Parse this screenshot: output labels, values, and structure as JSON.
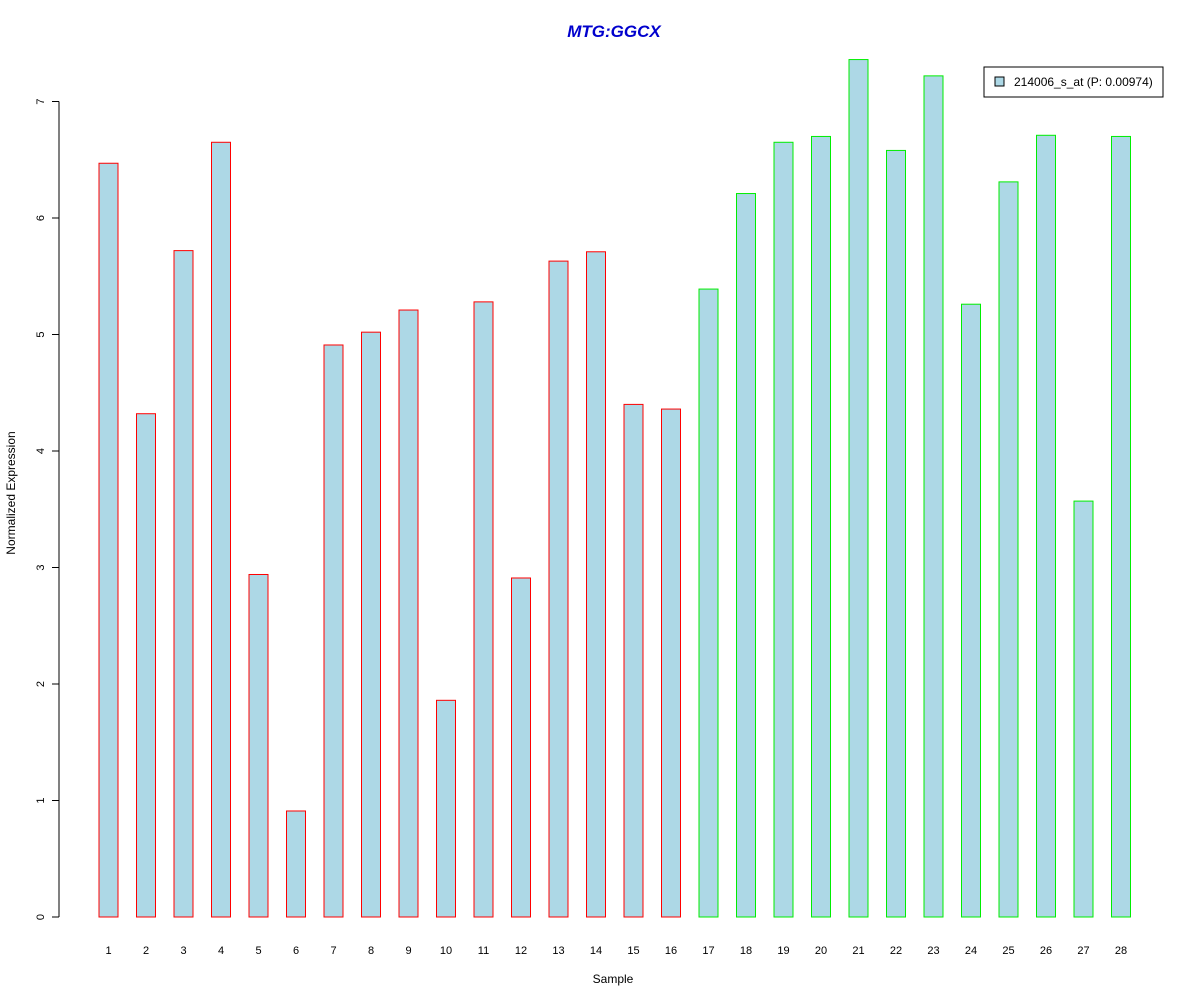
{
  "chart_data": {
    "type": "bar",
    "title": "MTG:GGCX",
    "xlabel": "Sample",
    "ylabel": "Normalized Expression",
    "categories": [
      "1",
      "2",
      "3",
      "4",
      "5",
      "6",
      "7",
      "8",
      "9",
      "10",
      "11",
      "12",
      "13",
      "14",
      "15",
      "16",
      "17",
      "18",
      "19",
      "20",
      "21",
      "22",
      "23",
      "24",
      "25",
      "26",
      "27",
      "28"
    ],
    "series": [
      {
        "name": "214006_s_at (P: 0.00974)",
        "values": [
          6.47,
          4.32,
          5.72,
          6.65,
          2.94,
          0.91,
          4.91,
          5.02,
          5.21,
          1.86,
          5.28,
          2.91,
          5.63,
          5.71,
          4.4,
          4.36,
          5.39,
          6.21,
          6.65,
          6.7,
          7.36,
          6.58,
          7.22,
          5.26,
          6.31,
          6.71,
          3.57,
          6.7
        ]
      }
    ],
    "group_border_colors": [
      "#ff0000",
      "#ff0000",
      "#ff0000",
      "#ff0000",
      "#ff0000",
      "#ff0000",
      "#ff0000",
      "#ff0000",
      "#ff0000",
      "#ff0000",
      "#ff0000",
      "#ff0000",
      "#ff0000",
      "#ff0000",
      "#ff0000",
      "#ff0000",
      "#00ee00",
      "#00ee00",
      "#00ee00",
      "#00ee00",
      "#00ee00",
      "#00ee00",
      "#00ee00",
      "#00ee00",
      "#00ee00",
      "#00ee00",
      "#00ee00",
      "#00ee00"
    ],
    "bar_fill": "#add8e6",
    "title_color": "#0000cd",
    "yticks": [
      0,
      1,
      2,
      3,
      4,
      5,
      6,
      7
    ],
    "ylim": [
      0,
      7.36
    ],
    "grid": false,
    "legend_position": "top-right"
  }
}
